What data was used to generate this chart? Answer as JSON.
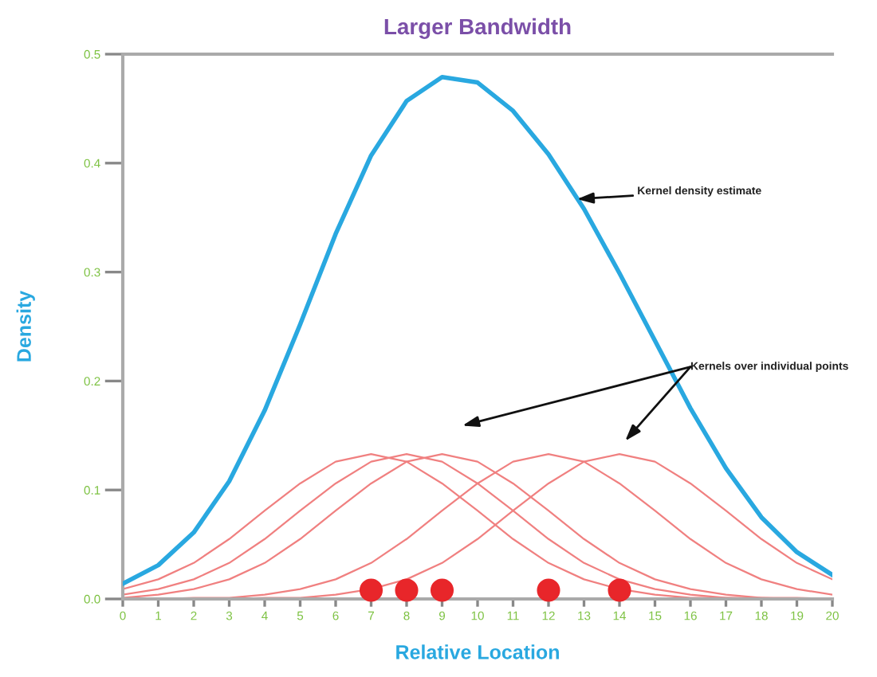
{
  "chart_data": {
    "type": "line",
    "title": "Larger Bandwidth",
    "xlabel": "Relative Location",
    "ylabel": "Density",
    "x": [
      0,
      1,
      2,
      3,
      4,
      5,
      6,
      7,
      8,
      9,
      10,
      11,
      12,
      13,
      14,
      15,
      16,
      17,
      18,
      19,
      20
    ],
    "series": [
      {
        "color": "#f08080",
        "values": [
          0.009,
          0.018,
          0.033,
          0.055,
          0.081,
          0.106,
          0.126,
          0.133,
          0.126,
          0.106,
          0.081,
          0.055,
          0.033,
          0.018,
          0.009,
          0.004,
          0.001,
          0.001,
          0,
          0,
          0
        ]
      },
      {
        "color": "#f08080",
        "values": [
          0.004,
          0.009,
          0.018,
          0.033,
          0.055,
          0.081,
          0.106,
          0.126,
          0.133,
          0.126,
          0.106,
          0.081,
          0.055,
          0.033,
          0.018,
          0.009,
          0.004,
          0.001,
          0.001,
          0,
          0
        ]
      },
      {
        "color": "#f08080",
        "values": [
          0.001,
          0.004,
          0.009,
          0.018,
          0.033,
          0.055,
          0.081,
          0.106,
          0.126,
          0.133,
          0.126,
          0.106,
          0.081,
          0.055,
          0.033,
          0.018,
          0.009,
          0.004,
          0.001,
          0.001,
          0
        ]
      },
      {
        "color": "#f08080",
        "values": [
          0,
          0,
          0.001,
          0.001,
          0.004,
          0.009,
          0.018,
          0.033,
          0.055,
          0.081,
          0.106,
          0.126,
          0.133,
          0.126,
          0.106,
          0.081,
          0.055,
          0.033,
          0.018,
          0.009,
          0.004
        ]
      },
      {
        "color": "#f08080",
        "values": [
          0,
          0,
          0,
          0,
          0.001,
          0.001,
          0.004,
          0.009,
          0.018,
          0.033,
          0.055,
          0.081,
          0.106,
          0.126,
          0.133,
          0.126,
          0.106,
          0.081,
          0.055,
          0.033,
          0.018
        ]
      },
      {
        "color": "#29a8e0",
        "values": [
          0.014,
          0.031,
          0.061,
          0.108,
          0.173,
          0.252,
          0.335,
          0.407,
          0.457,
          0.479,
          0.474,
          0.448,
          0.408,
          0.358,
          0.299,
          0.237,
          0.175,
          0.12,
          0.075,
          0.043,
          0.022
        ]
      },
      {
        "type": "scatter",
        "color": "#e8262a",
        "x": [
          7,
          8,
          9,
          12,
          14
        ],
        "values": [
          0.008,
          0.008,
          0.008,
          0.008,
          0.008
        ]
      }
    ],
    "xlim": [
      0,
      20
    ],
    "xticks": [
      0,
      1,
      2,
      3,
      4,
      5,
      6,
      7,
      8,
      9,
      10,
      11,
      12,
      13,
      14,
      15,
      16,
      17,
      18,
      19,
      20
    ],
    "ylim": [
      0,
      0.5
    ],
    "yticks": [
      {
        "value": 0,
        "label": "0.0"
      },
      {
        "value": 0.1,
        "label": "0.1"
      },
      {
        "value": 0.2,
        "label": "0.2"
      },
      {
        "value": 0.3,
        "label": "0.3"
      },
      {
        "value": 0.4,
        "label": "0.4"
      },
      {
        "value": 0.5,
        "label": "0.5"
      }
    ],
    "grid": false,
    "legend": false,
    "annotations": [
      {
        "text": "Kernel density estimate",
        "x": 12.8,
        "y": 0.367
      },
      "Kernels over individual points"
    ]
  }
}
